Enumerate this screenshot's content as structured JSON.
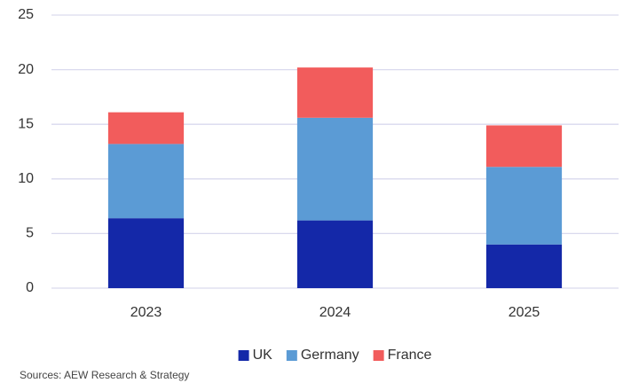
{
  "chart_data": {
    "type": "stacked_bar",
    "categories": [
      "2023",
      "2024",
      "2025"
    ],
    "series": [
      {
        "name": "UK",
        "color": "#1428a8",
        "values": [
          6.4,
          6.2,
          4.0
        ]
      },
      {
        "name": "Germany",
        "color": "#5b9bd5",
        "values": [
          6.8,
          9.4,
          7.1
        ]
      },
      {
        "name": "France",
        "color": "#f25c5c",
        "values": [
          2.9,
          4.6,
          3.8
        ]
      }
    ],
    "ylim": [
      0,
      25
    ],
    "yticks": [
      0,
      5,
      10,
      15,
      20,
      25
    ],
    "grid": true,
    "legend": "bottom",
    "source": "Sources: AEW Research & Strategy"
  }
}
